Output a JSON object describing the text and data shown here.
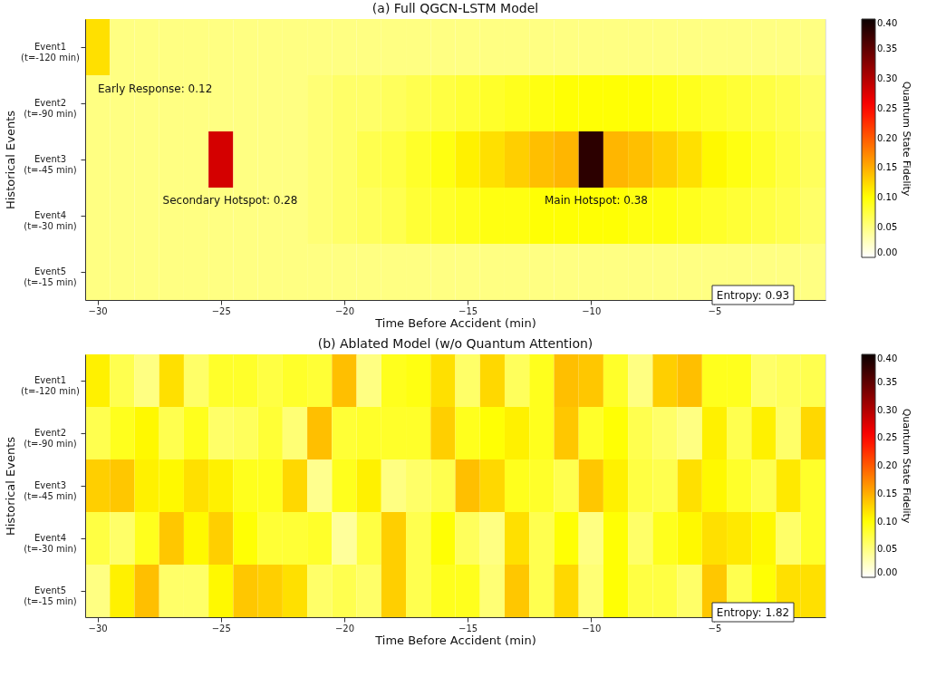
{
  "chart_data": [
    {
      "type": "heatmap",
      "title": "(a) Full QGCN-LSTM Model",
      "xlabel": "Time Before Accident (min)",
      "ylabel": "Historical Events",
      "clabel": "Quantum State Fidelity",
      "x": [
        -30,
        -29,
        -28,
        -27,
        -26,
        -25,
        -24,
        -23,
        -22,
        -21,
        -20,
        -19,
        -18,
        -17,
        -16,
        -15,
        -14,
        -13,
        -12,
        -11,
        -10,
        -9,
        -8,
        -7,
        -6,
        -5,
        -4,
        -3,
        -2,
        -1
      ],
      "xlim": [
        -30.5,
        -0.5
      ],
      "xticks": [
        -30,
        -25,
        -20,
        -15,
        -10,
        -5
      ],
      "y_categories": [
        "Event1\n(t=-120 min)",
        "Event2\n(t=-90 min)",
        "Event3\n(t=-45 min)",
        "Event4\n(t=-30 min)",
        "Event5\n(t=-15 min)"
      ],
      "cells": [
        [
          0.12,
          0.05,
          0.05,
          0.05,
          0.05,
          0.05,
          0.05,
          0.05,
          0.05,
          0.05,
          0.05,
          0.05,
          0.05,
          0.05,
          0.05,
          0.05,
          0.05,
          0.05,
          0.05,
          0.05,
          0.05,
          0.05,
          0.05,
          0.05,
          0.05,
          0.05,
          0.05,
          0.05,
          0.05,
          0.05
        ],
        [
          0.05,
          0.05,
          0.05,
          0.05,
          0.05,
          0.05,
          0.05,
          0.05,
          0.05,
          0.055,
          0.06,
          0.06,
          0.065,
          0.07,
          0.075,
          0.08,
          0.085,
          0.09,
          0.095,
          0.1,
          0.1,
          0.1,
          0.1,
          0.095,
          0.09,
          0.085,
          0.08,
          0.075,
          0.07,
          0.06
        ],
        [
          0.05,
          0.05,
          0.05,
          0.05,
          0.05,
          0.28,
          0.05,
          0.05,
          0.05,
          0.055,
          0.06,
          0.07,
          0.075,
          0.085,
          0.095,
          0.11,
          0.12,
          0.13,
          0.14,
          0.145,
          0.38,
          0.145,
          0.14,
          0.13,
          0.12,
          0.105,
          0.095,
          0.085,
          0.075,
          0.065
        ],
        [
          0.05,
          0.05,
          0.05,
          0.05,
          0.05,
          0.05,
          0.05,
          0.05,
          0.05,
          0.055,
          0.06,
          0.065,
          0.07,
          0.08,
          0.085,
          0.09,
          0.095,
          0.095,
          0.1,
          0.1,
          0.1,
          0.1,
          0.095,
          0.095,
          0.09,
          0.085,
          0.08,
          0.075,
          0.07,
          0.06
        ],
        [
          0.05,
          0.05,
          0.05,
          0.05,
          0.05,
          0.05,
          0.05,
          0.05,
          0.05,
          0.05,
          0.05,
          0.05,
          0.05,
          0.05,
          0.05,
          0.05,
          0.05,
          0.05,
          0.05,
          0.05,
          0.05,
          0.05,
          0.05,
          0.05,
          0.05,
          0.05,
          0.05,
          0.05,
          0.05,
          0.05
        ]
      ],
      "clim": [
        0,
        0.4
      ],
      "cticks": [
        {
          "value": 0,
          "label": "0.00"
        },
        {
          "value": 0.05,
          "label": "0.05"
        },
        {
          "value": 0.1,
          "label": "0.10"
        },
        {
          "value": 0.15,
          "label": "0.15"
        },
        {
          "value": 0.2,
          "label": "0.20"
        },
        {
          "value": 0.25,
          "label": "0.25"
        },
        {
          "value": 0.3,
          "label": "0.30"
        },
        {
          "value": 0.35,
          "label": "0.35"
        },
        {
          "value": 0.4,
          "label": "0.40"
        }
      ],
      "annotations": [
        "Early Response: 0.12",
        "Secondary Hotspot: 0.28",
        "Main Hotspot: 0.38",
        "Entropy: 0.93"
      ]
    },
    {
      "type": "heatmap",
      "title": "(b) Ablated Model (w/o Quantum Attention)",
      "xlabel": "Time Before Accident (min)",
      "ylabel": "Historical Events",
      "clabel": "Quantum State Fidelity",
      "x": [
        -30,
        -29,
        -28,
        -27,
        -26,
        -25,
        -24,
        -23,
        -22,
        -21,
        -20,
        -19,
        -18,
        -17,
        -16,
        -15,
        -14,
        -13,
        -12,
        -11,
        -10,
        -9,
        -8,
        -7,
        -6,
        -5,
        -4,
        -3,
        -2,
        -1
      ],
      "xlim": [
        -30.5,
        -0.5
      ],
      "xticks": [
        -30,
        -25,
        -20,
        -15,
        -10,
        -5
      ],
      "y_categories": [
        "Event1\n(t=-120 min)",
        "Event2\n(t=-90 min)",
        "Event3\n(t=-45 min)",
        "Event4\n(t=-30 min)",
        "Event5\n(t=-15 min)"
      ],
      "cells": [
        [
          0.11,
          0.07,
          0.05,
          0.12,
          0.06,
          0.085,
          0.085,
          0.075,
          0.085,
          0.08,
          0.14,
          0.05,
          0.09,
          0.095,
          0.12,
          0.06,
          0.125,
          0.065,
          0.09,
          0.14,
          0.135,
          0.085,
          0.05,
          0.13,
          0.14,
          0.09,
          0.09,
          0.06,
          0.065,
          0.07
        ],
        [
          0.07,
          0.09,
          0.105,
          0.07,
          0.09,
          0.06,
          0.065,
          0.08,
          0.055,
          0.14,
          0.08,
          0.085,
          0.085,
          0.085,
          0.13,
          0.09,
          0.1,
          0.11,
          0.09,
          0.135,
          0.085,
          0.1,
          0.07,
          0.06,
          0.05,
          0.11,
          0.07,
          0.11,
          0.06,
          0.125
        ],
        [
          0.13,
          0.135,
          0.11,
          0.105,
          0.12,
          0.11,
          0.09,
          0.09,
          0.125,
          0.045,
          0.09,
          0.11,
          0.05,
          0.06,
          0.07,
          0.14,
          0.125,
          0.09,
          0.085,
          0.07,
          0.135,
          0.11,
          0.075,
          0.07,
          0.12,
          0.105,
          0.085,
          0.07,
          0.115,
          0.085
        ],
        [
          0.075,
          0.06,
          0.09,
          0.135,
          0.105,
          0.13,
          0.1,
          0.08,
          0.08,
          0.085,
          0.04,
          0.075,
          0.13,
          0.07,
          0.1,
          0.065,
          0.05,
          0.12,
          0.07,
          0.1,
          0.05,
          0.1,
          0.06,
          0.09,
          0.105,
          0.12,
          0.115,
          0.105,
          0.06,
          0.085
        ],
        [
          0.05,
          0.11,
          0.14,
          0.06,
          0.06,
          0.105,
          0.135,
          0.13,
          0.12,
          0.06,
          0.07,
          0.06,
          0.13,
          0.07,
          0.09,
          0.09,
          0.055,
          0.135,
          0.07,
          0.125,
          0.055,
          0.1,
          0.075,
          0.075,
          0.06,
          0.135,
          0.07,
          0.1,
          0.12,
          0.12
        ]
      ],
      "clim": [
        0,
        0.4
      ],
      "cticks": [
        {
          "value": 0,
          "label": "0.00"
        },
        {
          "value": 0.05,
          "label": "0.05"
        },
        {
          "value": 0.1,
          "label": "0.10"
        },
        {
          "value": 0.15,
          "label": "0.15"
        },
        {
          "value": 0.2,
          "label": "0.20"
        },
        {
          "value": 0.25,
          "label": "0.25"
        },
        {
          "value": 0.3,
          "label": "0.30"
        },
        {
          "value": 0.35,
          "label": "0.35"
        },
        {
          "value": 0.4,
          "label": "0.40"
        }
      ],
      "annotations": [
        "Entropy: 1.82"
      ]
    }
  ]
}
